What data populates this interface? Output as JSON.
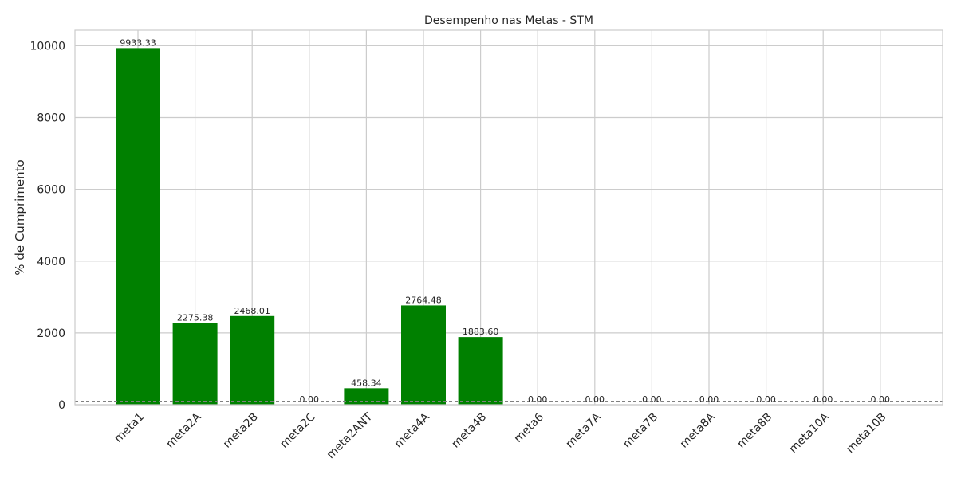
{
  "chart_data": {
    "type": "bar",
    "title": "Desempenho nas Metas - STM",
    "xlabel": "",
    "ylabel": "% de Cumprimento",
    "categories": [
      "meta1",
      "meta2A",
      "meta2B",
      "meta2C",
      "meta2ANT",
      "meta4A",
      "meta4B",
      "meta6",
      "meta7A",
      "meta7B",
      "meta8A",
      "meta8B",
      "meta10A",
      "meta10B"
    ],
    "values": [
      9933.33,
      2275.38,
      2468.01,
      0.0,
      458.34,
      2764.48,
      1883.6,
      0.0,
      0.0,
      0.0,
      0.0,
      0.0,
      0.0,
      0.0
    ],
    "data_labels": [
      "9933.33",
      "2275.38",
      "2468.01",
      "0.00",
      "458.34",
      "2764.48",
      "1883.60",
      "0.00",
      "0.00",
      "0.00",
      "0.00",
      "0.00",
      "0.00",
      "0.00"
    ],
    "ylim": [
      0,
      10430
    ],
    "yticks": [
      0,
      2000,
      4000,
      6000,
      8000,
      10000
    ],
    "reference_line": 100,
    "grid": true,
    "colors": {
      "bar": "#008000",
      "reference_line": "#808080"
    }
  }
}
